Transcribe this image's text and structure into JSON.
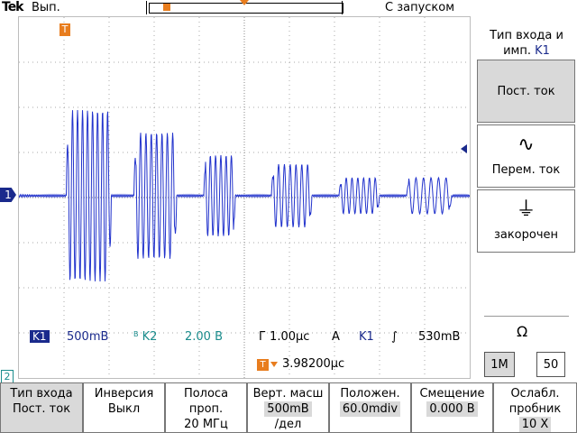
{
  "header": {
    "brand": "Tek",
    "acquisition": "Вып.",
    "trigger_mode": "С запуском"
  },
  "markers": {
    "trigger_tag": "T",
    "ch1": "1",
    "ch2": "2"
  },
  "readouts": {
    "ch1_label": "K1",
    "ch1_scale": "500mB",
    "ch2_bw": "B",
    "ch2_label": "K2",
    "ch2_scale": "2.00 B",
    "time_div": "Г 1.00μc",
    "trigger_type": "A",
    "trigger_source": "K1",
    "trigger_slope": "∫",
    "trigger_level": "530mB",
    "trigger_pos_tag": "T",
    "trigger_position": "3.98200μc"
  },
  "side_menu": {
    "title_line1": "Тип входа и",
    "title_line2": "имп.",
    "title_channel": "K1",
    "dc_label": "Пост. ток",
    "ac_icon": "∿",
    "ac_label": "Перем. ток",
    "gnd_icon": "⏚",
    "gnd_label": "закорочен",
    "impedance_icon": "Ω",
    "imp_1m": "1M",
    "imp_50": "50"
  },
  "bottom_menu": [
    {
      "line1": "Тип входа",
      "line2": "Пост. ток"
    },
    {
      "line1": "Инверсия",
      "line2": "Выкл"
    },
    {
      "line1": "Полоса",
      "line2": "проп.",
      "line3": "20 МГц"
    },
    {
      "line1": "Верт. масш",
      "line2": "500mB",
      "line3": "/дел"
    },
    {
      "line1": "Положен.",
      "line2": "60.0mdiv"
    },
    {
      "line1": "Смещение",
      "line2": "0.000 B"
    },
    {
      "line1": "Ослабл.",
      "line2": "пробник",
      "line3": "10 X"
    }
  ],
  "colors": {
    "ch1": "#1a2a8c",
    "ch2": "#1a8c8c",
    "trigger": "#e87d1e",
    "trace": "#2233cc"
  },
  "waveform": {
    "bursts": [
      {
        "start_div": 1.05,
        "end_div": 2.05,
        "amplitude_div": 1.9,
        "cycles": 9
      },
      {
        "start_div": 2.55,
        "end_div": 3.5,
        "amplitude_div": 1.4,
        "cycles": 8
      },
      {
        "start_div": 4.1,
        "end_div": 4.8,
        "amplitude_div": 0.9,
        "cycles": 6
      },
      {
        "start_div": 5.6,
        "end_div": 6.5,
        "amplitude_div": 0.7,
        "cycles": 7
      },
      {
        "start_div": 7.1,
        "end_div": 8.0,
        "amplitude_div": 0.4,
        "cycles": 7
      },
      {
        "start_div": 8.6,
        "end_div": 9.6,
        "amplitude_div": 0.4,
        "cycles": 6
      }
    ]
  }
}
